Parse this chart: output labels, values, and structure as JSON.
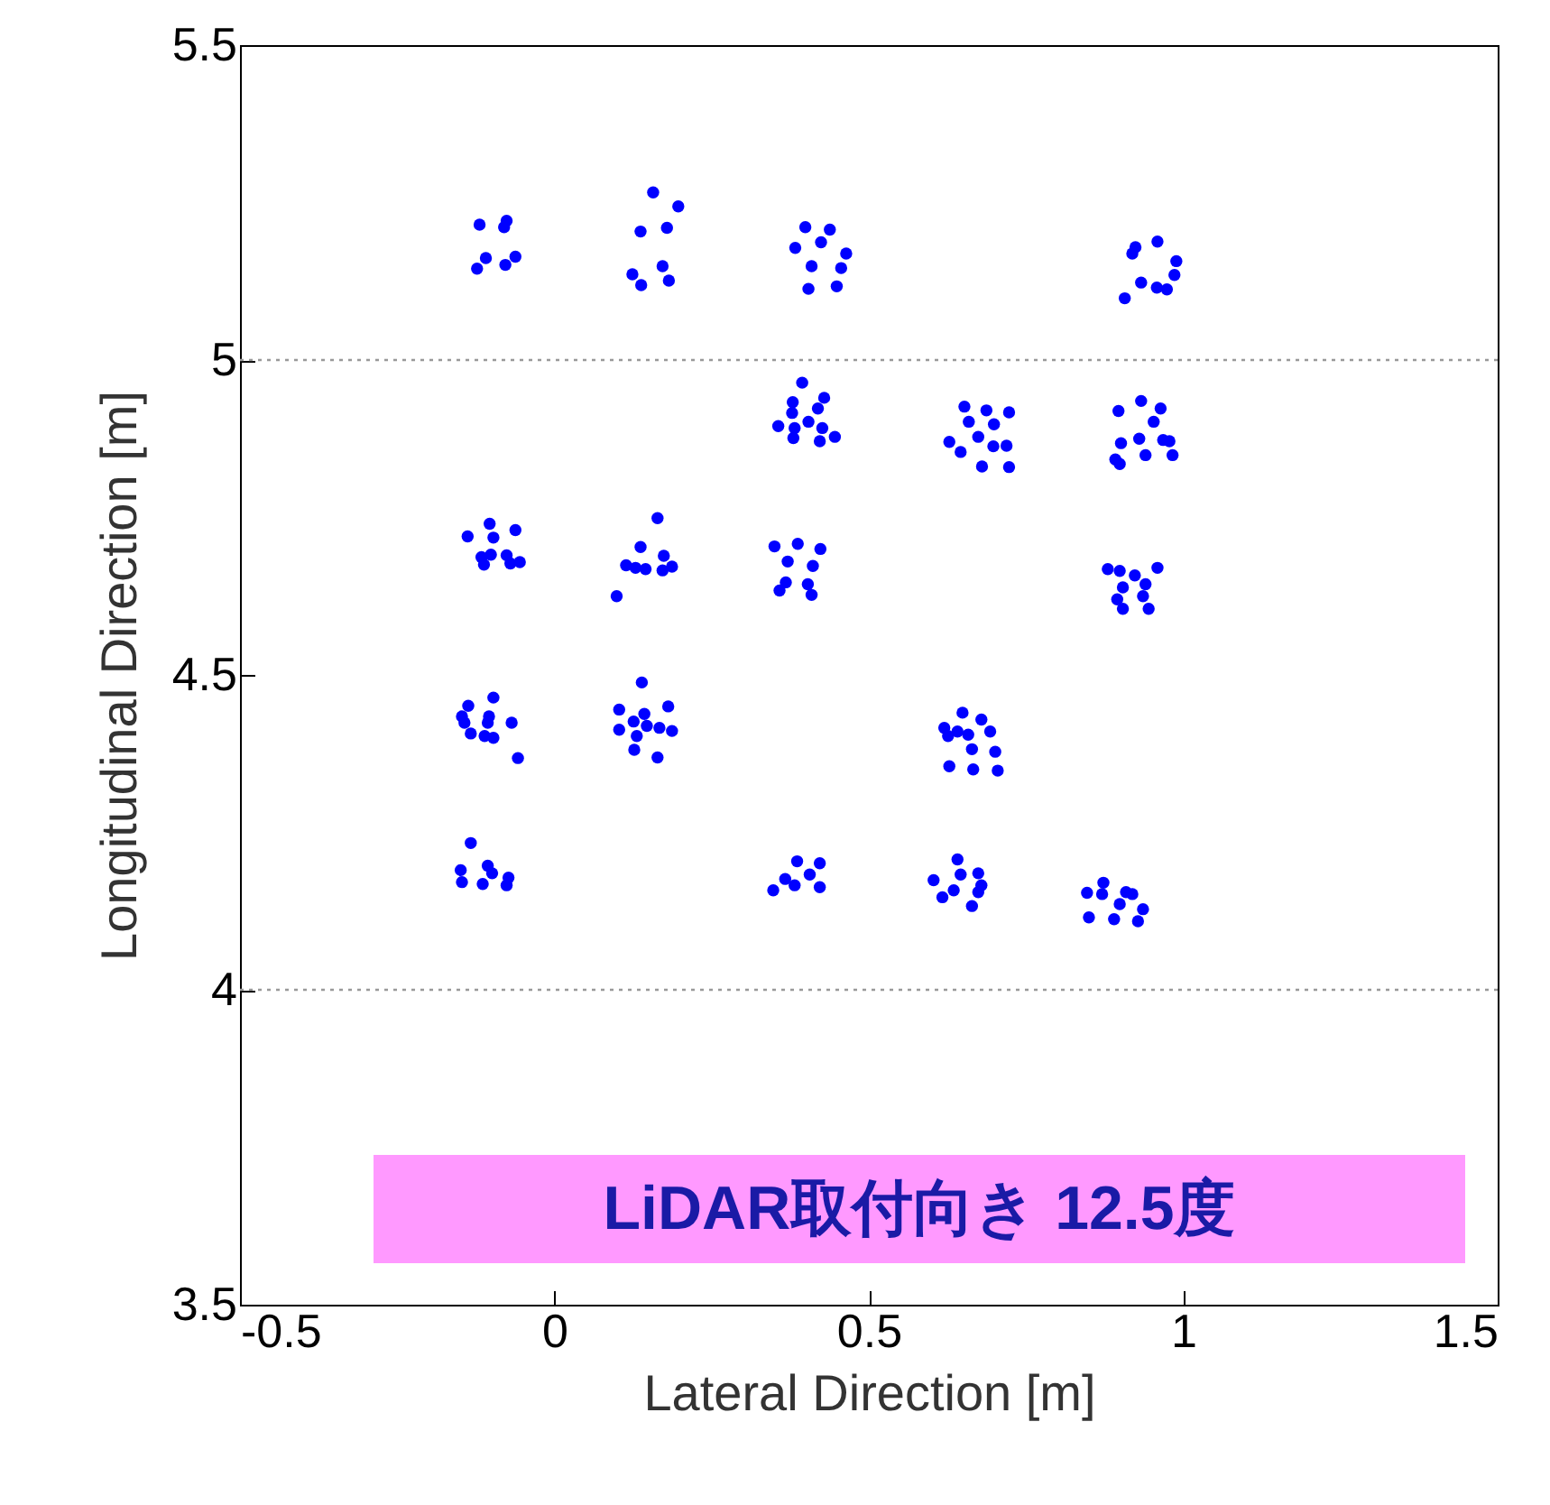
{
  "chart_data": {
    "type": "scatter",
    "xlabel": "Lateral Direction [m]",
    "ylabel": "Longitudinal Direction [m]",
    "xlim": [
      -0.5,
      1.5
    ],
    "xticks": [
      -0.5,
      0,
      0.5,
      1,
      1.5
    ],
    "ylim": [
      3.5,
      5.5
    ],
    "yticks": [
      3.5,
      4,
      4.5,
      5,
      5.5
    ],
    "grid": false,
    "marker": "circle",
    "ref_lines": [
      {
        "axis": "y",
        "value": 4,
        "line_style": "dotted",
        "color": "#999999"
      },
      {
        "axis": "y",
        "value": 5,
        "line_style": "dotted",
        "color": "#999999"
      }
    ],
    "annotations": [
      "LiDAR取付向き 12.5度"
    ],
    "series": [
      {
        "color": "#0000ff",
        "x": [
          -0.119,
          -0.076,
          -0.08,
          -0.109,
          -0.123,
          -0.078,
          -0.062,
          0.157,
          0.197,
          0.137,
          0.179,
          0.172,
          0.182,
          0.124,
          0.138,
          0.399,
          0.438,
          0.424,
          0.383,
          0.464,
          0.409,
          0.456,
          0.404,
          0.449,
          0.924,
          0.919,
          0.959,
          0.989,
          0.986,
          0.933,
          0.958,
          0.974,
          0.907,
          0.394,
          0.379,
          0.429,
          0.378,
          0.419,
          0.356,
          0.404,
          0.382,
          0.426,
          0.38,
          0.422,
          0.446,
          0.652,
          0.687,
          0.723,
          0.659,
          0.699,
          0.628,
          0.646,
          0.674,
          0.698,
          0.719,
          0.68,
          0.723,
          0.897,
          0.933,
          0.964,
          0.953,
          0.901,
          0.93,
          0.968,
          0.978,
          0.94,
          0.983,
          0.892,
          0.899,
          -0.138,
          -0.103,
          -0.097,
          -0.062,
          -0.116,
          -0.101,
          -0.112,
          -0.076,
          -0.07,
          -0.055,
          0.164,
          0.137,
          0.114,
          0.129,
          0.145,
          0.174,
          0.172,
          0.187,
          0.099,
          0.35,
          0.387,
          0.423,
          0.371,
          0.411,
          0.368,
          0.358,
          0.403,
          0.409,
          0.88,
          0.899,
          0.923,
          0.959,
          0.94,
          0.904,
          0.895,
          0.936,
          0.904,
          0.945,
          -0.137,
          -0.097,
          -0.147,
          -0.104,
          -0.143,
          -0.106,
          -0.068,
          -0.133,
          -0.111,
          -0.097,
          -0.058,
          0.139,
          0.103,
          0.181,
          0.126,
          0.143,
          0.147,
          0.167,
          0.187,
          0.103,
          0.131,
          0.127,
          0.164,
          0.649,
          0.62,
          0.641,
          0.679,
          0.693,
          0.658,
          0.626,
          0.664,
          0.701,
          0.628,
          0.666,
          0.705,
          -0.133,
          -0.149,
          -0.106,
          -0.147,
          -0.114,
          -0.099,
          -0.073,
          -0.076,
          0.386,
          0.422,
          0.406,
          0.367,
          0.382,
          0.422,
          0.348,
          0.641,
          0.646,
          0.674,
          0.603,
          0.635,
          0.679,
          0.674,
          0.617,
          0.664,
          0.847,
          0.873,
          0.871,
          0.909,
          0.919,
          0.899,
          0.936,
          0.85,
          0.89,
          0.928
        ],
        "values": [
          5.215,
          5.221,
          5.211,
          5.162,
          5.145,
          5.151,
          5.164,
          5.266,
          5.244,
          5.204,
          5.21,
          5.149,
          5.126,
          5.136,
          5.119,
          5.211,
          5.207,
          5.187,
          5.178,
          5.169,
          5.149,
          5.146,
          5.113,
          5.117,
          5.179,
          5.169,
          5.188,
          5.157,
          5.135,
          5.123,
          5.115,
          5.112,
          5.098,
          4.964,
          4.933,
          4.94,
          4.916,
          4.923,
          4.895,
          4.902,
          4.892,
          4.892,
          4.876,
          4.871,
          4.878,
          4.926,
          4.92,
          4.917,
          4.902,
          4.898,
          4.87,
          4.854,
          4.878,
          4.863,
          4.864,
          4.831,
          4.83,
          4.919,
          4.935,
          4.923,
          4.902,
          4.868,
          4.875,
          4.873,
          4.871,
          4.849,
          4.849,
          4.842,
          4.835,
          4.72,
          4.74,
          4.718,
          4.73,
          4.687,
          4.691,
          4.675,
          4.69,
          4.677,
          4.679,
          4.749,
          4.703,
          4.674,
          4.67,
          4.668,
          4.689,
          4.666,
          4.672,
          4.625,
          4.704,
          4.708,
          4.7,
          4.68,
          4.673,
          4.647,
          4.634,
          4.644,
          4.627,
          4.668,
          4.665,
          4.658,
          4.67,
          4.644,
          4.639,
          4.62,
          4.625,
          4.605,
          4.605,
          4.451,
          4.464,
          4.434,
          4.434,
          4.424,
          4.424,
          4.424,
          4.407,
          4.403,
          4.4,
          4.368,
          4.488,
          4.445,
          4.45,
          4.426,
          4.438,
          4.419,
          4.416,
          4.411,
          4.413,
          4.403,
          4.381,
          4.369,
          4.44,
          4.416,
          4.41,
          4.429,
          4.41,
          4.405,
          4.403,
          4.382,
          4.378,
          4.355,
          4.35,
          4.348,
          4.233,
          4.19,
          4.197,
          4.171,
          4.168,
          4.185,
          4.178,
          4.166,
          4.204,
          4.201,
          4.183,
          4.176,
          4.166,
          4.163,
          4.158,
          4.207,
          4.183,
          4.185,
          4.174,
          4.158,
          4.166,
          4.155,
          4.147,
          4.133,
          4.154,
          4.17,
          4.152,
          4.155,
          4.152,
          4.136,
          4.128,
          4.115,
          4.112,
          4.109
        ]
      }
    ]
  }
}
